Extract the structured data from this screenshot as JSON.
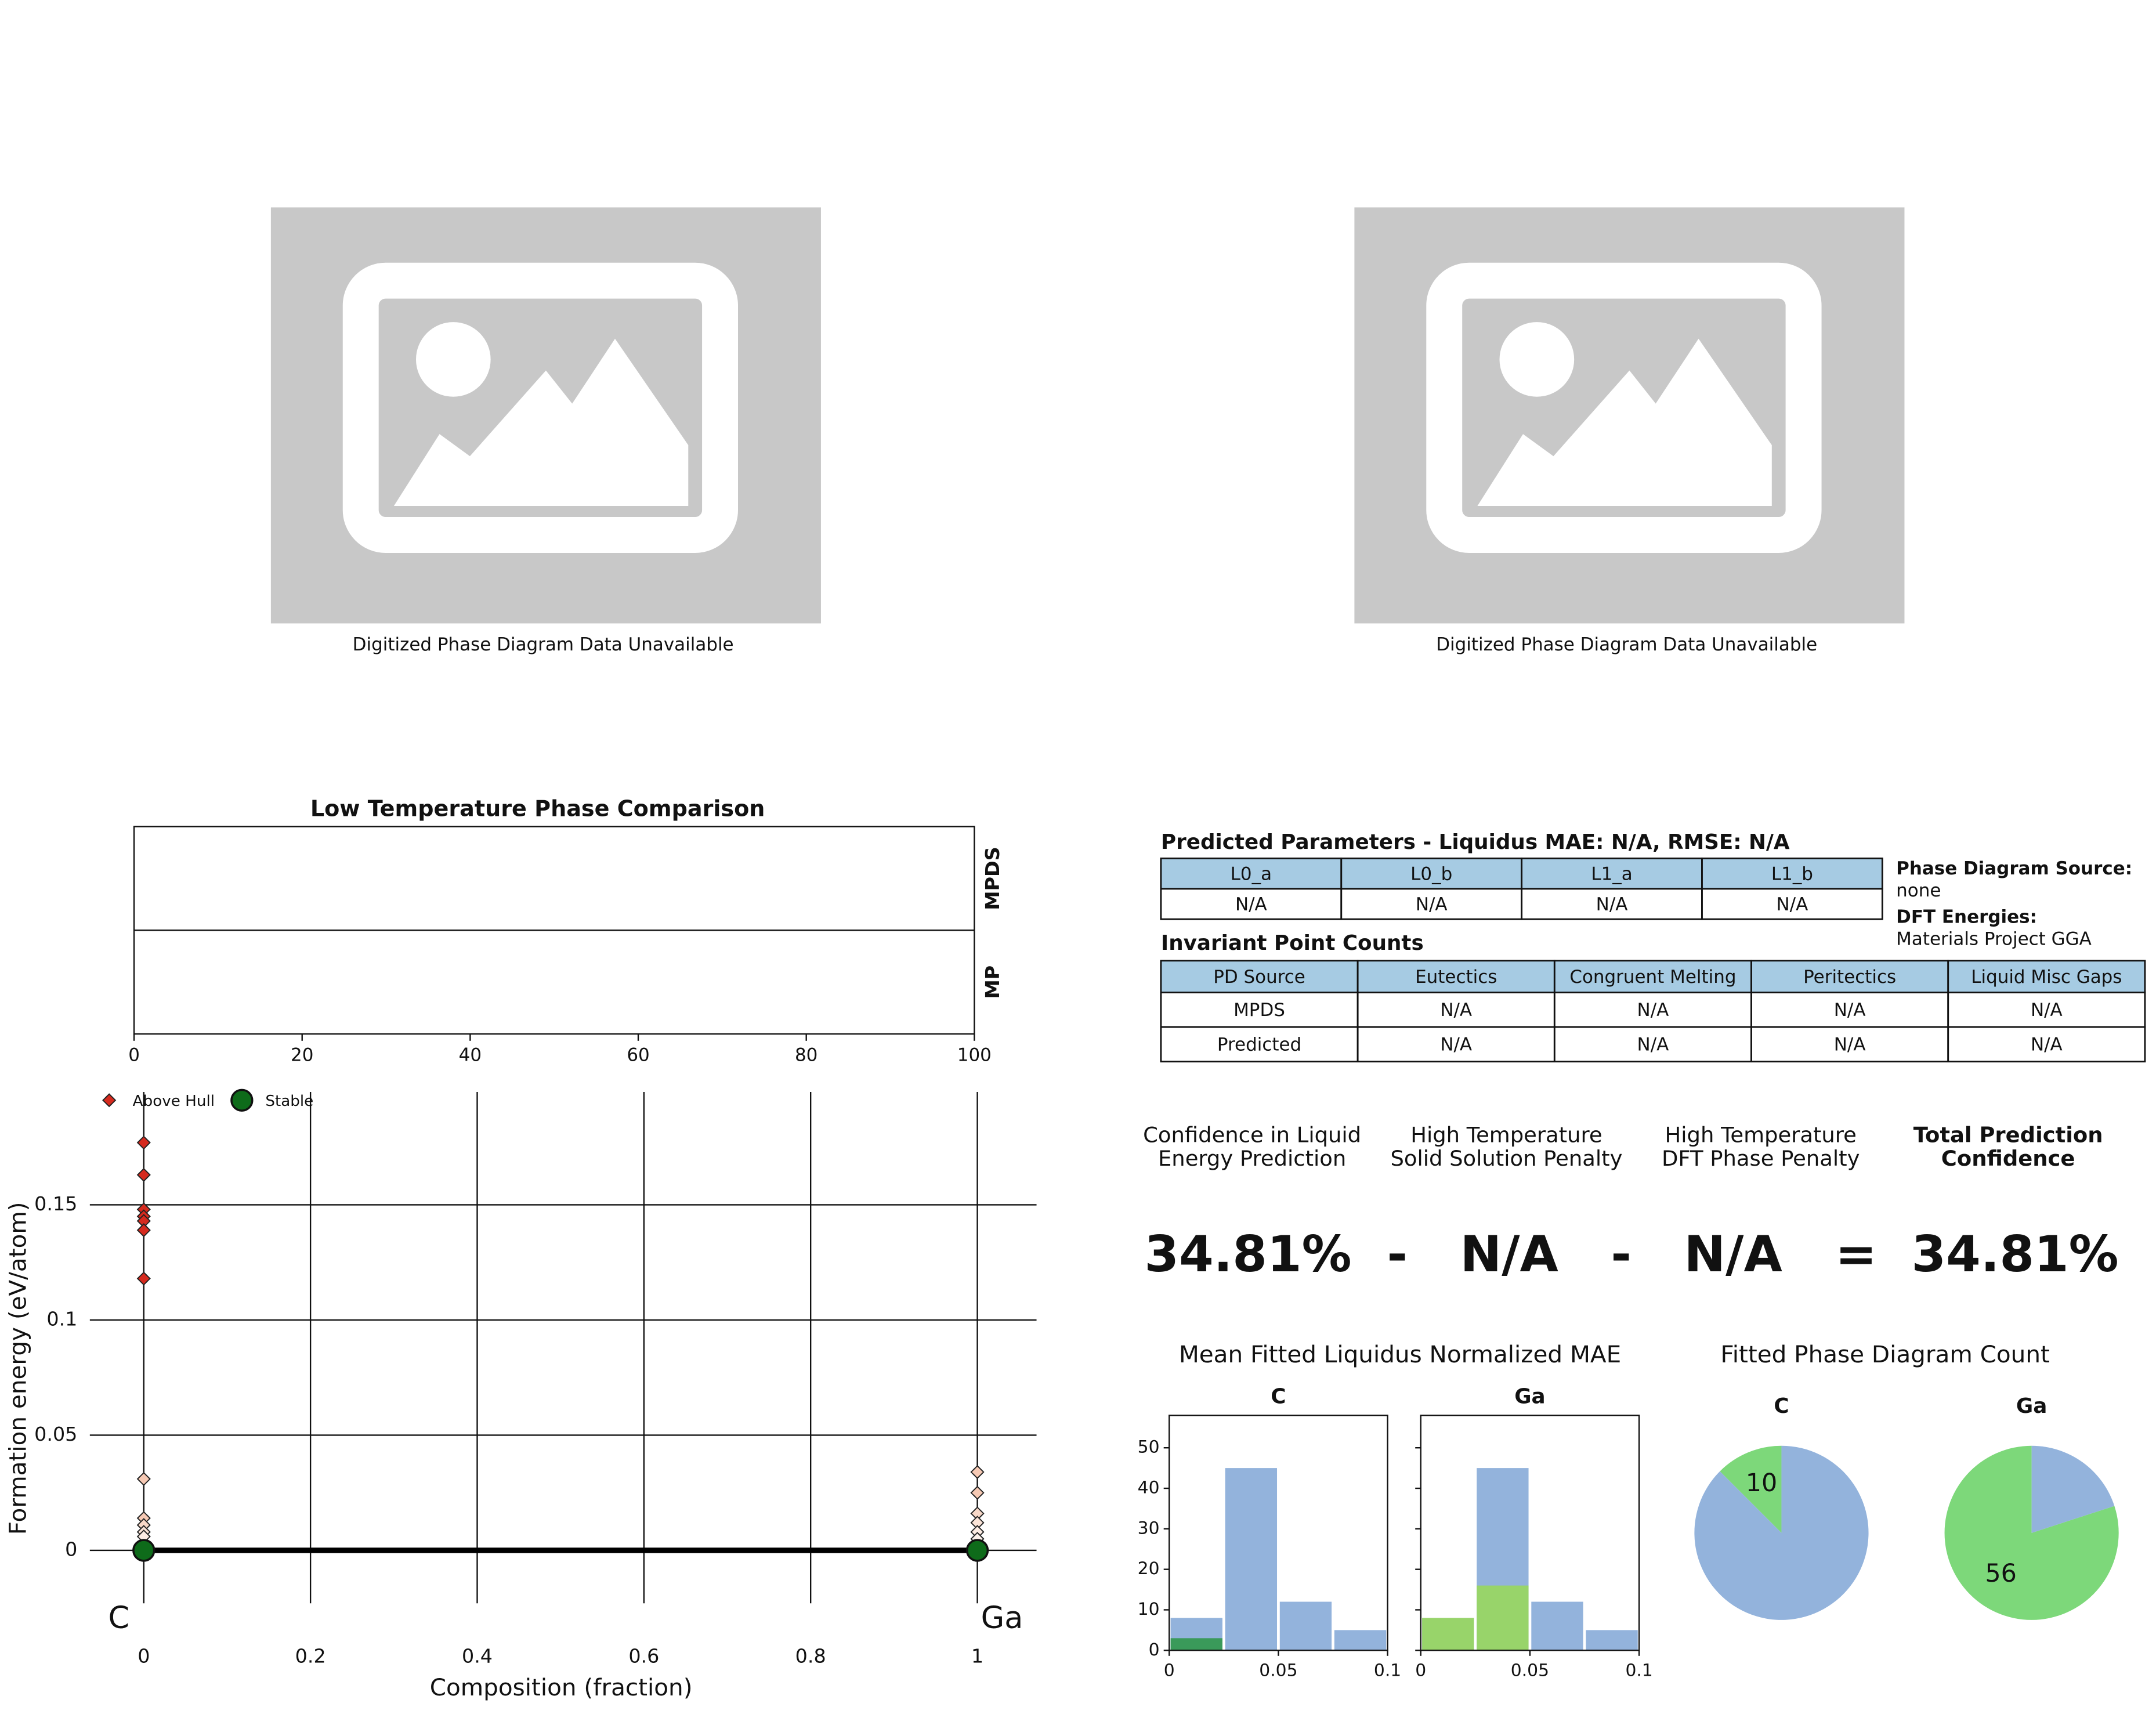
{
  "images": [
    {
      "caption": "Digitized Phase Diagram Data Unavailable"
    },
    {
      "caption": "Digitized Phase Diagram Data Unavailable"
    }
  ],
  "parameters_table": {
    "title": "Predicted Parameters - Liquidus MAE: N/A, RMSE: N/A",
    "header": [
      "L0_a",
      "L0_b",
      "L1_a",
      "L1_b"
    ],
    "rows": [
      [
        "N/A",
        "N/A",
        "N/A",
        "N/A"
      ]
    ]
  },
  "sources": [
    {
      "label": "Phase Diagram Source:",
      "value": "none"
    },
    {
      "label": "DFT Energies:",
      "value": "Materials Project GGA"
    }
  ],
  "invariant_table": {
    "title": "Invariant Point Counts",
    "header": [
      "PD Source",
      "Eutectics",
      "Congruent Melting",
      "Peritectics",
      "Liquid Misc Gaps"
    ],
    "rows": [
      [
        "MPDS",
        "N/A",
        "N/A",
        "N/A",
        "N/A"
      ],
      [
        "Predicted",
        "N/A",
        "N/A",
        "N/A",
        "N/A"
      ]
    ]
  },
  "confidence": {
    "terms": [
      {
        "label": [
          "Confidence in Liquid",
          "Energy Prediction"
        ],
        "value": "34.81%"
      },
      {
        "label": [
          "High Temperature",
          "Solid Solution Penalty"
        ],
        "value": "N/A"
      },
      {
        "label": [
          "High Temperature",
          "DFT Phase Penalty"
        ],
        "value": "N/A"
      },
      {
        "label": [
          "Total Prediction",
          "Confidence"
        ],
        "value": "34.81%"
      }
    ],
    "operators": [
      "-",
      "-",
      "="
    ]
  },
  "mae_title": "Mean Fitted Liquidus Normalized MAE",
  "count_title": "Fitted Phase Diagram Count",
  "chart_data": [
    {
      "type": "bar",
      "title": "Low Temperature Phase Comparison",
      "orientation": "horizontal",
      "categories": [
        "MPDS",
        "MP"
      ],
      "xlim": [
        0,
        100
      ],
      "xticks": [
        0,
        20,
        40,
        60,
        80,
        100
      ]
    },
    {
      "type": "scatter",
      "xlabel": "Composition (fraction)",
      "ylabel": "Formation energy (eV/atom)",
      "xlim": [
        -0.073,
        1.071
      ],
      "ylim": [
        -0.038,
        0.199
      ],
      "xticks": [
        0,
        0.2,
        0.4,
        0.6,
        0.8,
        1
      ],
      "yticks": [
        0,
        0.05,
        0.1,
        0.15
      ],
      "grid": true,
      "annotations": [
        "C",
        "Ga"
      ],
      "series": [
        {
          "mode": "line",
          "color": "#000000",
          "x": [
            0,
            1
          ],
          "y": [
            0,
            0
          ]
        },
        {
          "name": "Above Hull",
          "marker": "diamond",
          "color": "#d62a1e",
          "x": [
            0,
            0,
            0,
            0,
            0,
            0,
            0,
            0,
            0,
            0,
            0,
            0,
            1,
            1,
            1,
            1,
            1,
            1
          ],
          "y": [
            0.177,
            0.163,
            0.148,
            0.145,
            0.143,
            0.139,
            0.118,
            0.031,
            0.014,
            0.011,
            0.008,
            0.006,
            0.034,
            0.025,
            0.016,
            0.012,
            0.008,
            0.005
          ],
          "colors": [
            "#d62a1e",
            "#d62a1e",
            "#d62a1e",
            "#d62a1e",
            "#d62a1e",
            "#d62a1e",
            "#d62a1e",
            "#f6c9b4",
            "#f6c9b4",
            "#f8d8c8",
            "#fbe4d8",
            "#fcece4",
            "#f6c9b4",
            "#f6c9b4",
            "#f8d8c8",
            "#fbe4d8",
            "#fcece4",
            "#fdf2ec"
          ]
        },
        {
          "name": "Stable",
          "marker": "circle",
          "color": "#0e6b1a",
          "x": [
            0,
            1
          ],
          "y": [
            0,
            0
          ]
        }
      ]
    },
    {
      "type": "histogram",
      "title": "C",
      "bins": [
        0,
        0.025,
        0.05,
        0.075,
        0.1
      ],
      "xlim": [
        0,
        0.1
      ],
      "xticks": [
        0,
        0.05,
        0.1
      ],
      "ylim": [
        0,
        58
      ],
      "yticks": [
        0,
        10,
        20,
        30,
        40,
        50
      ],
      "series": [
        {
          "color": "#93b3dc",
          "values": [
            8,
            45,
            12,
            5
          ]
        },
        {
          "color": "#3a9a5a",
          "values": [
            3,
            0,
            0,
            0
          ]
        }
      ]
    },
    {
      "type": "histogram",
      "title": "Ga",
      "bins": [
        0,
        0.025,
        0.05,
        0.075,
        0.1
      ],
      "xlim": [
        0,
        0.1
      ],
      "xticks": [
        0,
        0.05,
        0.1
      ],
      "ylim": [
        0,
        58
      ],
      "series": [
        {
          "color": "#93b3dc",
          "values": [
            8,
            45,
            12,
            5
          ]
        },
        {
          "color": "#98d46a",
          "values": [
            8,
            16,
            0,
            0
          ]
        }
      ]
    },
    {
      "type": "pie",
      "title": "C",
      "values": [
        10,
        70
      ],
      "value_labels": [
        "10",
        null
      ],
      "colors": [
        "#7dd87a",
        "#93b3dc"
      ]
    },
    {
      "type": "pie",
      "title": "Ga",
      "values": [
        56,
        14
      ],
      "value_labels": [
        "56",
        null
      ],
      "colors": [
        "#7dd87a",
        "#93b3dc"
      ]
    }
  ]
}
